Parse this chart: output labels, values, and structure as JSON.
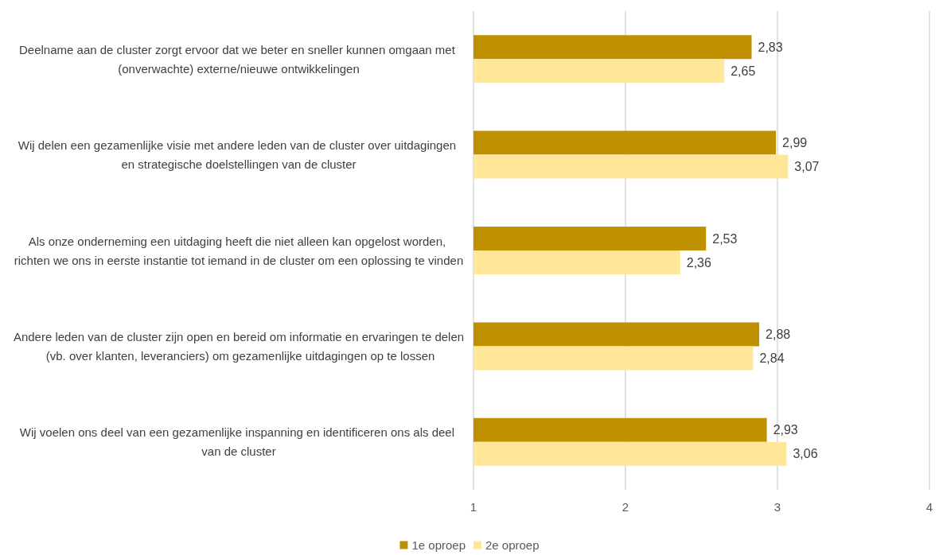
{
  "chart_data": {
    "type": "bar",
    "orientation": "horizontal",
    "categories": [
      "Deelname aan de cluster zorgt ervoor dat we beter en sneller kunnen omgaan met (onverwachte) externe/nieuwe ontwikkelingen",
      "Wij delen een gezamenlijke visie met andere leden van de cluster over uitdagingen en strategische doelstellingen van de cluster",
      "Als onze onderneming een uitdaging heeft die niet alleen kan opgelost worden, richten we ons in eerste instantie tot iemand in de cluster om een oplossing te vinden",
      "Andere leden van de cluster zijn open en bereid om informatie en ervaringen te delen (vb. over klanten, leveranciers) om gezamenlijke uitdagingen op te lossen",
      "Wij voelen ons deel van een gezamenlijke inspanning en identificeren ons als deel van de cluster"
    ],
    "series": [
      {
        "name": "1e oproep",
        "color": "#bf9000",
        "values": [
          2.83,
          2.99,
          2.53,
          2.88,
          2.93
        ],
        "value_labels": [
          "2,83",
          "2,99",
          "2,53",
          "2,88",
          "2,93"
        ]
      },
      {
        "name": "2e oproep",
        "color": "#ffe699",
        "values": [
          2.65,
          3.07,
          2.36,
          2.84,
          3.06
        ],
        "value_labels": [
          "2,65",
          "3,07",
          "2,36",
          "2,84",
          "3,06"
        ]
      }
    ],
    "xlim": [
      1,
      4
    ],
    "xticks": [
      1,
      2,
      3,
      4
    ],
    "grid": "x",
    "legend": "bottom"
  }
}
